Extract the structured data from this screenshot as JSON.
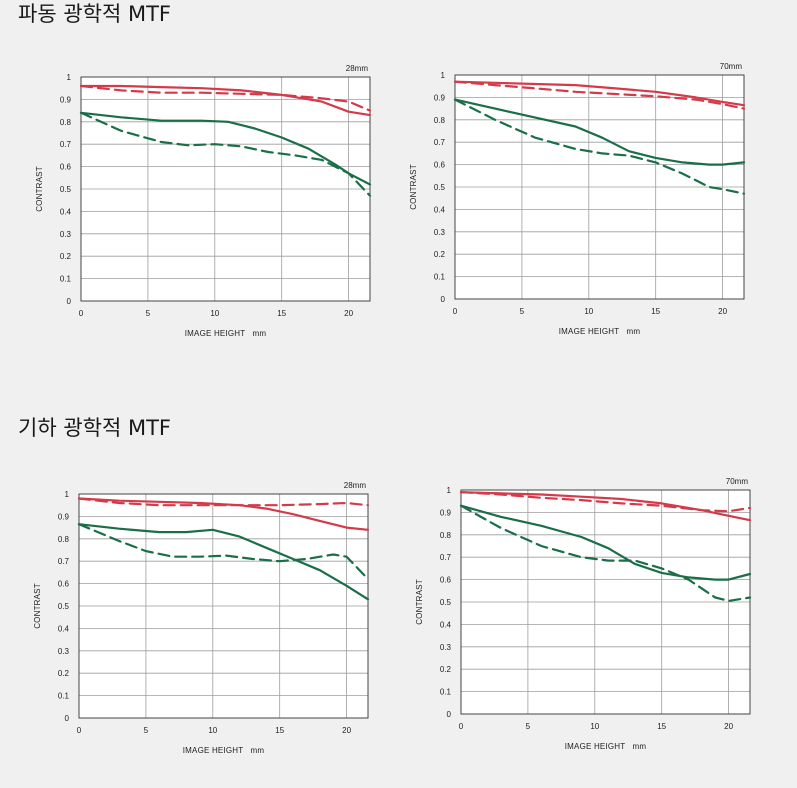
{
  "sections": [
    {
      "title": "파동 광학적 MTF"
    },
    {
      "title": "기하 광학적 MTF"
    }
  ],
  "colors": {
    "red": "#d43a4a",
    "green": "#1a6e48"
  },
  "chart_data": [
    {
      "type": "line",
      "title": "28mm",
      "xlabel": "IMAGE HEIGHT   mm",
      "ylabel": "CONTRAST",
      "xlim": [
        0,
        21.6
      ],
      "ylim": [
        0,
        1
      ],
      "xticks": [
        "0",
        "5",
        "10",
        "15",
        "20"
      ],
      "yticks": [
        "0",
        "0.1",
        "0.2",
        "0.3",
        "0.4",
        "0.5",
        "0.6",
        "0.7",
        "0.8",
        "0.9",
        "1"
      ],
      "grid": true,
      "series": [
        {
          "color": "red",
          "dash": false,
          "x": [
            0,
            3,
            6,
            9,
            12,
            15,
            18,
            20,
            21.6
          ],
          "y": [
            0.96,
            0.96,
            0.955,
            0.95,
            0.94,
            0.92,
            0.89,
            0.845,
            0.83
          ]
        },
        {
          "color": "red",
          "dash": true,
          "x": [
            0,
            3,
            6,
            9,
            12,
            15,
            18,
            20,
            21.6
          ],
          "y": [
            0.96,
            0.94,
            0.93,
            0.93,
            0.925,
            0.92,
            0.905,
            0.89,
            0.85
          ]
        },
        {
          "color": "green",
          "dash": false,
          "x": [
            0,
            3,
            6,
            9,
            11,
            13,
            15,
            17,
            19,
            20,
            21.6
          ],
          "y": [
            0.84,
            0.82,
            0.805,
            0.805,
            0.8,
            0.77,
            0.73,
            0.68,
            0.61,
            0.57,
            0.52
          ]
        },
        {
          "color": "green",
          "dash": true,
          "x": [
            0,
            3,
            6,
            8,
            10,
            12,
            14,
            16,
            18,
            20,
            21.6
          ],
          "y": [
            0.84,
            0.76,
            0.71,
            0.695,
            0.7,
            0.69,
            0.665,
            0.65,
            0.63,
            0.57,
            0.47
          ]
        }
      ]
    },
    {
      "type": "line",
      "title": "70mm",
      "xlabel": "IMAGE HEIGHT   mm",
      "ylabel": "CONTRAST",
      "xlim": [
        0,
        21.6
      ],
      "ylim": [
        0,
        1
      ],
      "xticks": [
        "0",
        "5",
        "10",
        "15",
        "20"
      ],
      "yticks": [
        "0",
        "0.1",
        "0.2",
        "0.3",
        "0.4",
        "0.5",
        "0.6",
        "0.7",
        "0.8",
        "0.9",
        "1"
      ],
      "grid": true,
      "series": [
        {
          "color": "red",
          "dash": false,
          "x": [
            0,
            3,
            6,
            9,
            12,
            15,
            18,
            20,
            21.6
          ],
          "y": [
            0.97,
            0.965,
            0.96,
            0.955,
            0.94,
            0.925,
            0.9,
            0.88,
            0.865
          ]
        },
        {
          "color": "red",
          "dash": true,
          "x": [
            0,
            3,
            6,
            9,
            12,
            15,
            18,
            20,
            21.6
          ],
          "y": [
            0.97,
            0.955,
            0.94,
            0.925,
            0.915,
            0.905,
            0.89,
            0.87,
            0.85
          ]
        },
        {
          "color": "green",
          "dash": false,
          "x": [
            0,
            3,
            6,
            9,
            11,
            13,
            15,
            17,
            19,
            20,
            21.6
          ],
          "y": [
            0.89,
            0.85,
            0.81,
            0.77,
            0.72,
            0.66,
            0.63,
            0.61,
            0.6,
            0.6,
            0.61
          ]
        },
        {
          "color": "green",
          "dash": true,
          "x": [
            0,
            3,
            6,
            9,
            11,
            13,
            15,
            17,
            19,
            20,
            21.6
          ],
          "y": [
            0.89,
            0.8,
            0.72,
            0.67,
            0.65,
            0.64,
            0.61,
            0.56,
            0.5,
            0.49,
            0.47
          ]
        }
      ]
    },
    {
      "type": "line",
      "title": "28mm",
      "xlabel": "IMAGE HEIGHT   mm",
      "ylabel": "CONTRAST",
      "xlim": [
        0,
        21.6
      ],
      "ylim": [
        0,
        1
      ],
      "xticks": [
        "0",
        "5",
        "10",
        "15",
        "20"
      ],
      "yticks": [
        "0",
        "0.1",
        "0.2",
        "0.3",
        "0.4",
        "0.5",
        "0.6",
        "0.7",
        "0.8",
        "0.9",
        "1"
      ],
      "grid": true,
      "series": [
        {
          "color": "red",
          "dash": false,
          "x": [
            0,
            3,
            6,
            9,
            12,
            14,
            16,
            18,
            20,
            21.6
          ],
          "y": [
            0.98,
            0.97,
            0.965,
            0.96,
            0.95,
            0.935,
            0.91,
            0.88,
            0.85,
            0.84
          ]
        },
        {
          "color": "red",
          "dash": true,
          "x": [
            0,
            3,
            6,
            9,
            12,
            15,
            18,
            20,
            21.6
          ],
          "y": [
            0.98,
            0.96,
            0.95,
            0.95,
            0.95,
            0.95,
            0.955,
            0.96,
            0.95
          ]
        },
        {
          "color": "green",
          "dash": false,
          "x": [
            0,
            3,
            6,
            8,
            10,
            12,
            14,
            16,
            18,
            20,
            21.6
          ],
          "y": [
            0.865,
            0.845,
            0.83,
            0.83,
            0.84,
            0.81,
            0.76,
            0.71,
            0.66,
            0.59,
            0.53
          ]
        },
        {
          "color": "green",
          "dash": true,
          "x": [
            0,
            3,
            5,
            7,
            9,
            11,
            13,
            15,
            17,
            19,
            20,
            21.6
          ],
          "y": [
            0.865,
            0.79,
            0.745,
            0.72,
            0.72,
            0.725,
            0.71,
            0.7,
            0.71,
            0.73,
            0.72,
            0.62
          ]
        }
      ]
    },
    {
      "type": "line",
      "title": "70mm",
      "xlabel": "IMAGE HEIGHT   mm",
      "ylabel": "CONTRAST",
      "xlim": [
        0,
        21.6
      ],
      "ylim": [
        0,
        1
      ],
      "xticks": [
        "0",
        "5",
        "10",
        "15",
        "20"
      ],
      "yticks": [
        "0",
        "0.1",
        "0.2",
        "0.3",
        "0.4",
        "0.5",
        "0.6",
        "0.7",
        "0.8",
        "0.9",
        "1"
      ],
      "grid": true,
      "series": [
        {
          "color": "red",
          "dash": false,
          "x": [
            0,
            3,
            6,
            9,
            12,
            15,
            18,
            20,
            21.6
          ],
          "y": [
            0.99,
            0.985,
            0.98,
            0.97,
            0.96,
            0.94,
            0.91,
            0.885,
            0.865
          ]
        },
        {
          "color": "red",
          "dash": true,
          "x": [
            0,
            3,
            6,
            9,
            12,
            15,
            18,
            20,
            21.6
          ],
          "y": [
            0.99,
            0.98,
            0.965,
            0.955,
            0.94,
            0.93,
            0.91,
            0.905,
            0.92
          ]
        },
        {
          "color": "green",
          "dash": false,
          "x": [
            0,
            3,
            6,
            9,
            11,
            13,
            15,
            17,
            19,
            20,
            21.6
          ],
          "y": [
            0.93,
            0.88,
            0.84,
            0.79,
            0.74,
            0.67,
            0.63,
            0.61,
            0.6,
            0.6,
            0.625
          ]
        },
        {
          "color": "green",
          "dash": true,
          "x": [
            0,
            3,
            6,
            9,
            11,
            13,
            15,
            17,
            19,
            20,
            21.6
          ],
          "y": [
            0.93,
            0.83,
            0.75,
            0.7,
            0.685,
            0.685,
            0.65,
            0.6,
            0.52,
            0.505,
            0.52
          ]
        }
      ]
    }
  ]
}
